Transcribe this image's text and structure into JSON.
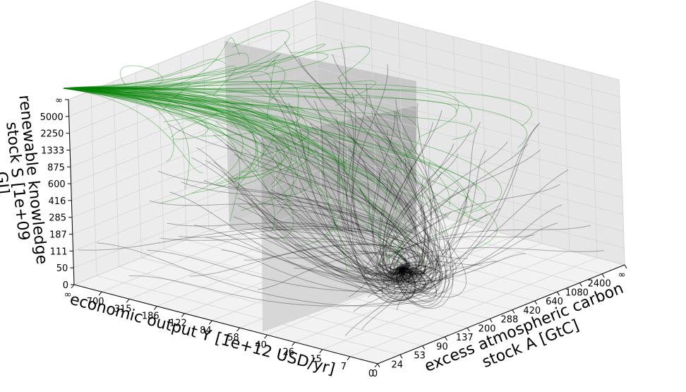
{
  "axes": {
    "y_axis": {
      "title": "economic output Y [1e+12 USD/yr]",
      "ticks": [
        "∞",
        "700",
        "315",
        "186",
        "122",
        "84",
        "58",
        "40",
        "26",
        "15",
        "7",
        "0"
      ]
    },
    "a_axis": {
      "title_lines": [
        "excess atmospheric carbon",
        "stock A [GtC]"
      ],
      "ticks": [
        "0",
        "24",
        "53",
        "90",
        "137",
        "200",
        "288",
        "420",
        "640",
        "1080",
        "2400",
        "∞"
      ]
    },
    "s_axis": {
      "title_lines": [
        "renewable knowledge",
        "stock S [1e+09",
        "GJ]"
      ],
      "ticks": [
        "0",
        "50",
        "111",
        "187",
        "285",
        "416",
        "600",
        "875",
        "1333",
        "2250",
        "5000",
        "∞"
      ]
    }
  }
}
